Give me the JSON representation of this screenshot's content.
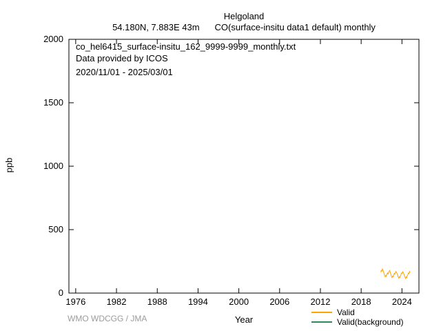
{
  "header": {
    "station": "Helgoland",
    "coords": "54.180N, 7.883E 43m",
    "parameter": "CO(surface-insitu data1 default) monthly"
  },
  "annotations": {
    "filename": "co_hel6415_surface-insitu_162_9999-9999_monthly.txt",
    "provider": "Data provided by ICOS",
    "period": "2020/11/01 - 2025/03/01"
  },
  "axes": {
    "ylabel": "ppb",
    "xlabel": "Year"
  },
  "footer": {
    "credit": "WMO WDCGG / JMA"
  },
  "legend": [
    {
      "label": "Valid",
      "color": "#ffa500"
    },
    {
      "label": "Valid(background)",
      "color": "#2e8b57"
    }
  ],
  "chart_data": {
    "type": "line",
    "title": "Helgoland",
    "subtitle": "54.180N, 7.883E 43m  CO(surface-insitu data1 default) monthly",
    "xlabel": "Year",
    "ylabel": "ppb",
    "xlim": [
      1975,
      2026.5
    ],
    "ylim": [
      0,
      2000
    ],
    "xticks": [
      1976,
      1982,
      1988,
      1994,
      2000,
      2006,
      2012,
      2018,
      2024
    ],
    "yticks": [
      0,
      500,
      1000,
      1500,
      2000
    ],
    "grid": false,
    "legend_position": "bottom-right",
    "series": [
      {
        "name": "Valid",
        "color": "#ffa500",
        "start": "2020-11",
        "step_months": 1,
        "values": [
          165,
          178,
          172,
          190,
          182,
          168,
          152,
          135,
          128,
          140,
          132,
          150,
          158,
          150,
          165,
          172,
          178,
          160,
          148,
          130,
          122,
          135,
          128,
          142,
          155,
          148,
          162,
          170,
          160,
          152,
          140,
          125,
          118,
          130,
          124,
          138,
          150,
          160,
          155,
          168,
          158,
          150,
          138,
          124,
          115,
          128,
          122,
          138,
          148,
          158,
          152,
          170,
          162
        ]
      },
      {
        "name": "Valid(background)",
        "color": "#2e8b57",
        "start": "2020-11",
        "step_months": 1,
        "values": []
      }
    ]
  }
}
